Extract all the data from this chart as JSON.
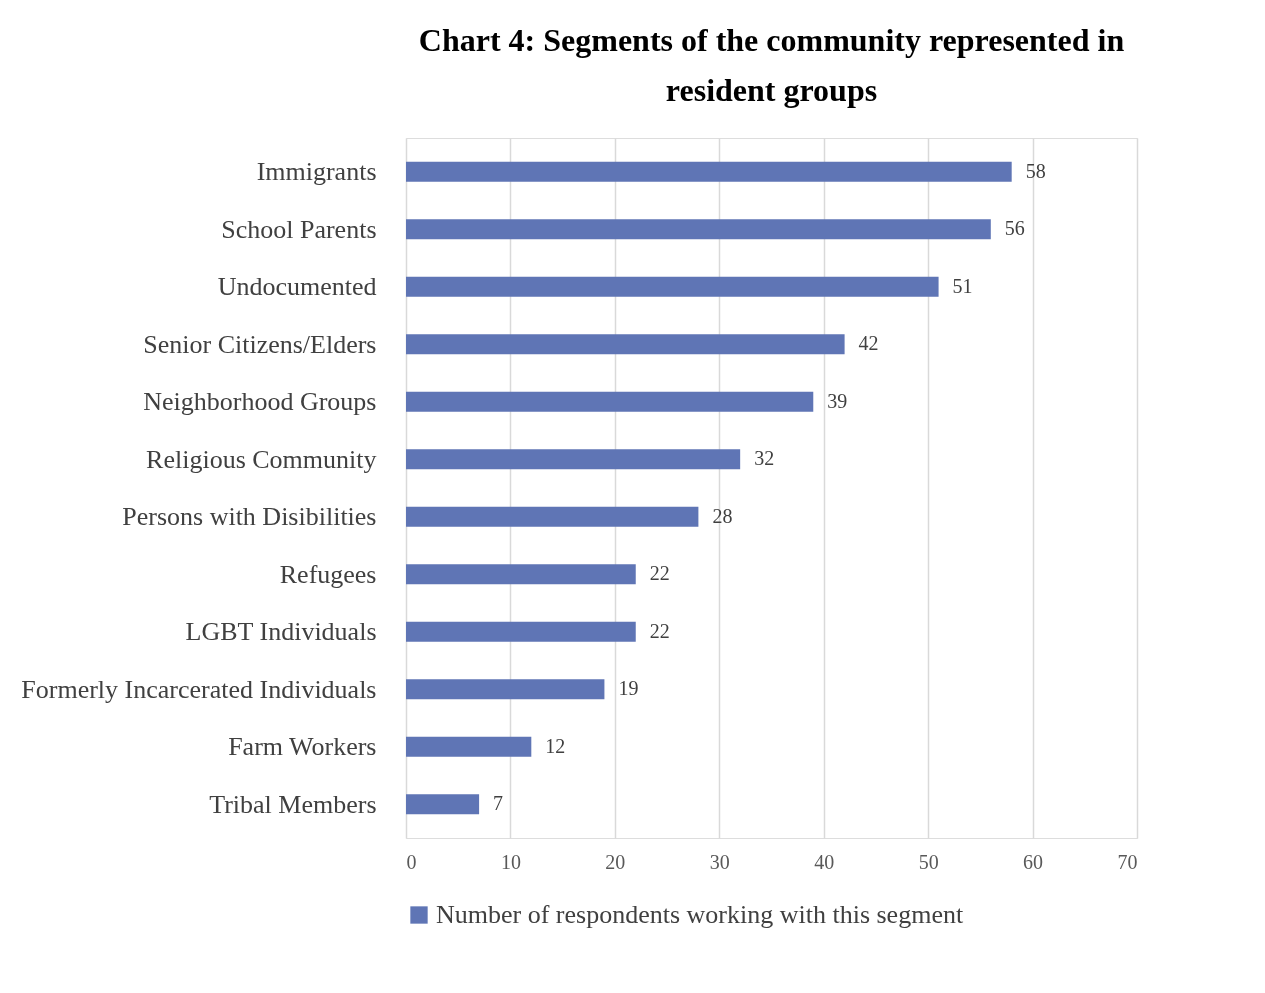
{
  "chart_data": {
    "type": "bar",
    "orientation": "horizontal",
    "title": "Chart 4:  Segments of the community represented in resident groups",
    "categories": [
      "Immigrants",
      "School Parents",
      "Undocumented",
      "Senior Citizens/Elders",
      "Neighborhood Groups",
      "Religious Community",
      "Persons with Disibilities",
      "Refugees",
      "LGBT Individuals",
      "Formerly Incarcerated Individuals",
      "Farm Workers",
      "Tribal Members"
    ],
    "series": [
      {
        "name": "Number of respondents working with this segment",
        "color": "#5f75b5",
        "values": [
          58,
          56,
          51,
          42,
          39,
          32,
          28,
          22,
          22,
          19,
          12,
          7
        ]
      }
    ],
    "xlim": [
      0,
      70
    ],
    "xticks": [
      0,
      10,
      20,
      30,
      40,
      50,
      60,
      70
    ],
    "grid": "x",
    "data_labels": true,
    "legend": "bottom"
  }
}
